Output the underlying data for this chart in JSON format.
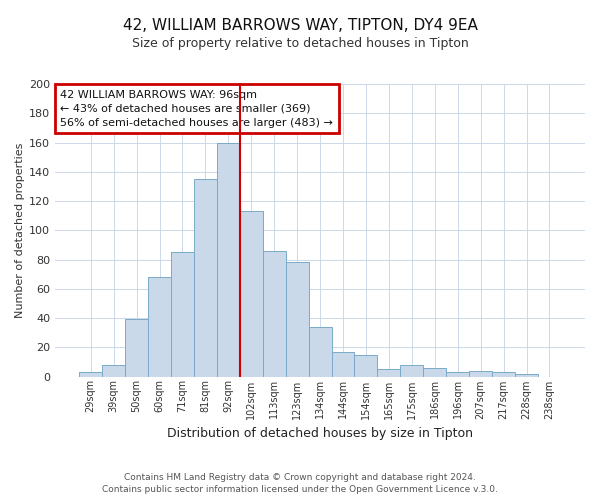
{
  "title": "42, WILLIAM BARROWS WAY, TIPTON, DY4 9EA",
  "subtitle": "Size of property relative to detached houses in Tipton",
  "xlabel": "Distribution of detached houses by size in Tipton",
  "ylabel": "Number of detached properties",
  "bin_labels": [
    "29sqm",
    "39sqm",
    "50sqm",
    "60sqm",
    "71sqm",
    "81sqm",
    "92sqm",
    "102sqm",
    "113sqm",
    "123sqm",
    "134sqm",
    "144sqm",
    "154sqm",
    "165sqm",
    "175sqm",
    "186sqm",
    "196sqm",
    "207sqm",
    "217sqm",
    "228sqm",
    "238sqm"
  ],
  "bar_heights": [
    3,
    8,
    39,
    68,
    85,
    135,
    160,
    113,
    86,
    78,
    34,
    17,
    15,
    5,
    8,
    6,
    3,
    4,
    3,
    2,
    0
  ],
  "bar_color": "#c9d9ea",
  "bar_edge_color": "#7aaac8",
  "vline_color": "#cc0000",
  "ylim": [
    0,
    200
  ],
  "yticks": [
    0,
    20,
    40,
    60,
    80,
    100,
    120,
    140,
    160,
    180,
    200
  ],
  "annotation_title": "42 WILLIAM BARROWS WAY: 96sqm",
  "annotation_line1": "← 43% of detached houses are smaller (369)",
  "annotation_line2": "56% of semi-detached houses are larger (483) →",
  "annotation_box_color": "#ffffff",
  "annotation_box_edge_color": "#cc0000",
  "footer1": "Contains HM Land Registry data © Crown copyright and database right 2024.",
  "footer2": "Contains public sector information licensed under the Open Government Licence v.3.0.",
  "background_color": "#ffffff",
  "grid_color": "#ccd8e8"
}
